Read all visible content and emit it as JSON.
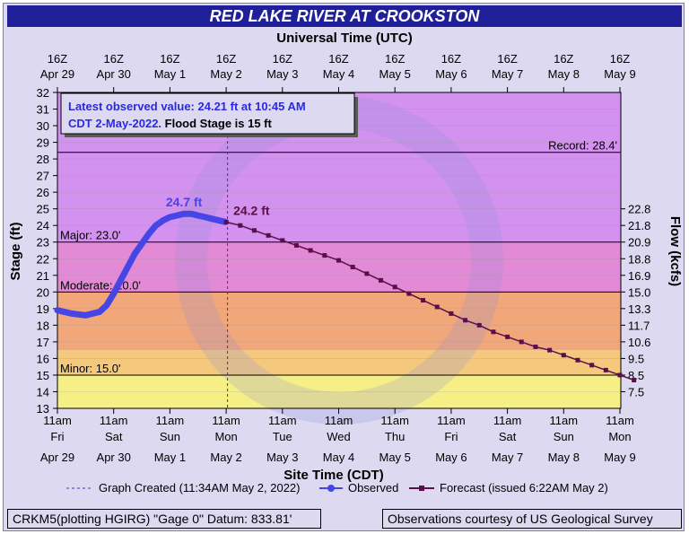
{
  "title": "RED LAKE RIVER AT CROOKSTON",
  "top_axis_title": "Universal Time (UTC)",
  "bottom_axis_title": "Site Time (CDT)",
  "left_axis_title": "Stage (ft)",
  "right_axis_title": "Flow (kcfs)",
  "info_box": {
    "line1": "Latest observed value: 24.21 ft at 10:45 AM",
    "line2_blue": "CDT 2-May-2022.",
    "line2_black": "Flood Stage is 15 ft"
  },
  "legend": {
    "created": "Graph Created (11:34AM May 2, 2022)",
    "observed": "Observed",
    "forecast": "Forecast (issued 6:22AM May 2)"
  },
  "footer": {
    "left": "CRKM5(plotting HGIRG) \"Gage 0\" Datum: 833.81'",
    "right": "Observations courtesy of US Geological Survey"
  },
  "colors": {
    "title_bg": "#1f1f99",
    "observed": "#4646e6",
    "forecast": "#5a0f4a",
    "zone_record": "#d391f0",
    "zone_major": "#e38ad6",
    "zone_moderate": "#f2a77a",
    "zone_minor": "#f4c97e",
    "zone_action": "#f6ef86",
    "plot_bg": "#f3f47c"
  },
  "chart_data": {
    "type": "line",
    "x_is_time": true,
    "ylim": [
      13,
      32
    ],
    "yticks": [
      13,
      14,
      15,
      16,
      17,
      18,
      19,
      20,
      21,
      22,
      23,
      24,
      25,
      26,
      27,
      28,
      29,
      30,
      31,
      32
    ],
    "flow_ticks": [
      {
        "stage": 14,
        "label": "7.5"
      },
      {
        "stage": 15,
        "label": "8.5"
      },
      {
        "stage": 16,
        "label": "9.5"
      },
      {
        "stage": 17,
        "label": "10.6"
      },
      {
        "stage": 18,
        "label": "11.7"
      },
      {
        "stage": 19,
        "label": "13.3"
      },
      {
        "stage": 20,
        "label": "15.0"
      },
      {
        "stage": 21,
        "label": "16.9"
      },
      {
        "stage": 22,
        "label": "18.8"
      },
      {
        "stage": 23,
        "label": "20.9"
      },
      {
        "stage": 24,
        "label": "21.8"
      },
      {
        "stage": 25,
        "label": "22.8"
      }
    ],
    "bottom_ticks": [
      {
        "time": "11am",
        "day": "Fri",
        "date": "Apr 29"
      },
      {
        "time": "11am",
        "day": "Sat",
        "date": "Apr 30"
      },
      {
        "time": "11am",
        "day": "Sun",
        "date": "May 1"
      },
      {
        "time": "11am",
        "day": "Mon",
        "date": "May 2"
      },
      {
        "time": "11am",
        "day": "Tue",
        "date": "May 3"
      },
      {
        "time": "11am",
        "day": "Wed",
        "date": "May 4"
      },
      {
        "time": "11am",
        "day": "Thu",
        "date": "May 5"
      },
      {
        "time": "11am",
        "day": "Fri",
        "date": "May 6"
      },
      {
        "time": "11am",
        "day": "Sat",
        "date": "May 7"
      },
      {
        "time": "11am",
        "day": "Sun",
        "date": "May 8"
      },
      {
        "time": "11am",
        "day": "Mon",
        "date": "May 9"
      }
    ],
    "top_ticks": [
      {
        "time": "16Z",
        "date": "Apr 29"
      },
      {
        "time": "16Z",
        "date": "Apr 30"
      },
      {
        "time": "16Z",
        "date": "May 1"
      },
      {
        "time": "16Z",
        "date": "May 2"
      },
      {
        "time": "16Z",
        "date": "May 3"
      },
      {
        "time": "16Z",
        "date": "May 4"
      },
      {
        "time": "16Z",
        "date": "May 5"
      },
      {
        "time": "16Z",
        "date": "May 6"
      },
      {
        "time": "16Z",
        "date": "May 7"
      },
      {
        "time": "16Z",
        "date": "May 8"
      },
      {
        "time": "16Z",
        "date": "May 9"
      }
    ],
    "thresholds": [
      {
        "name": "Record",
        "value": 28.4,
        "label": "Record: 28.4'",
        "anchor": "right"
      },
      {
        "name": "Major",
        "value": 23.0,
        "label": "Major: 23.0'",
        "anchor": "left"
      },
      {
        "name": "Moderate",
        "value": 20.0,
        "label": "Moderate: 20.0'",
        "anchor": "left"
      },
      {
        "name": "Minor",
        "value": 15.0,
        "label": "Minor: 15.0'",
        "anchor": "left"
      }
    ],
    "graph_created": "2022-05-02 11:34",
    "series": [
      {
        "name": "Observed",
        "points": [
          [
            "2022-04-29 11:00",
            18.9
          ],
          [
            "2022-04-29 17:00",
            18.7
          ],
          [
            "2022-04-29 23:00",
            18.6
          ],
          [
            "2022-04-30 05:00",
            18.8
          ],
          [
            "2022-04-30 08:00",
            19.2
          ],
          [
            "2022-04-30 11:00",
            19.9
          ],
          [
            "2022-04-30 14:00",
            20.7
          ],
          [
            "2022-04-30 17:00",
            21.5
          ],
          [
            "2022-04-30 20:00",
            22.3
          ],
          [
            "2022-04-30 23:00",
            22.9
          ],
          [
            "2022-05-01 02:00",
            23.5
          ],
          [
            "2022-05-01 05:00",
            24.0
          ],
          [
            "2022-05-01 08:00",
            24.3
          ],
          [
            "2022-05-01 11:00",
            24.5
          ],
          [
            "2022-05-01 14:00",
            24.6
          ],
          [
            "2022-05-01 17:00",
            24.7
          ],
          [
            "2022-05-01 20:00",
            24.7
          ],
          [
            "2022-05-01 23:00",
            24.6
          ],
          [
            "2022-05-02 02:00",
            24.5
          ],
          [
            "2022-05-02 05:00",
            24.4
          ],
          [
            "2022-05-02 08:00",
            24.3
          ],
          [
            "2022-05-02 10:45",
            24.21
          ]
        ],
        "labels": [
          {
            "at": "2022-05-01 17:00",
            "value": 24.7,
            "text": "24.7 ft"
          }
        ]
      },
      {
        "name": "Forecast",
        "points": [
          [
            "2022-05-02 11:00",
            24.2
          ],
          [
            "2022-05-02 17:00",
            24.0
          ],
          [
            "2022-05-02 23:00",
            23.7
          ],
          [
            "2022-05-03 05:00",
            23.4
          ],
          [
            "2022-05-03 11:00",
            23.1
          ],
          [
            "2022-05-03 17:00",
            22.8
          ],
          [
            "2022-05-03 23:00",
            22.5
          ],
          [
            "2022-05-04 05:00",
            22.2
          ],
          [
            "2022-05-04 11:00",
            21.9
          ],
          [
            "2022-05-04 17:00",
            21.5
          ],
          [
            "2022-05-04 23:00",
            21.1
          ],
          [
            "2022-05-05 05:00",
            20.7
          ],
          [
            "2022-05-05 11:00",
            20.3
          ],
          [
            "2022-05-05 17:00",
            19.9
          ],
          [
            "2022-05-05 23:00",
            19.5
          ],
          [
            "2022-05-06 05:00",
            19.1
          ],
          [
            "2022-05-06 11:00",
            18.7
          ],
          [
            "2022-05-06 17:00",
            18.3
          ],
          [
            "2022-05-06 23:00",
            18.0
          ],
          [
            "2022-05-07 05:00",
            17.6
          ],
          [
            "2022-05-07 11:00",
            17.3
          ],
          [
            "2022-05-07 17:00",
            17.0
          ],
          [
            "2022-05-07 23:00",
            16.7
          ],
          [
            "2022-05-08 05:00",
            16.5
          ],
          [
            "2022-05-08 11:00",
            16.2
          ],
          [
            "2022-05-08 17:00",
            15.9
          ],
          [
            "2022-05-08 23:00",
            15.6
          ],
          [
            "2022-05-09 05:00",
            15.3
          ],
          [
            "2022-05-09 11:00",
            15.0
          ],
          [
            "2022-05-09 17:00",
            14.7
          ]
        ],
        "labels": [
          {
            "at": "2022-05-02 11:00",
            "value": 24.2,
            "text": "24.2 ft"
          }
        ]
      }
    ]
  }
}
